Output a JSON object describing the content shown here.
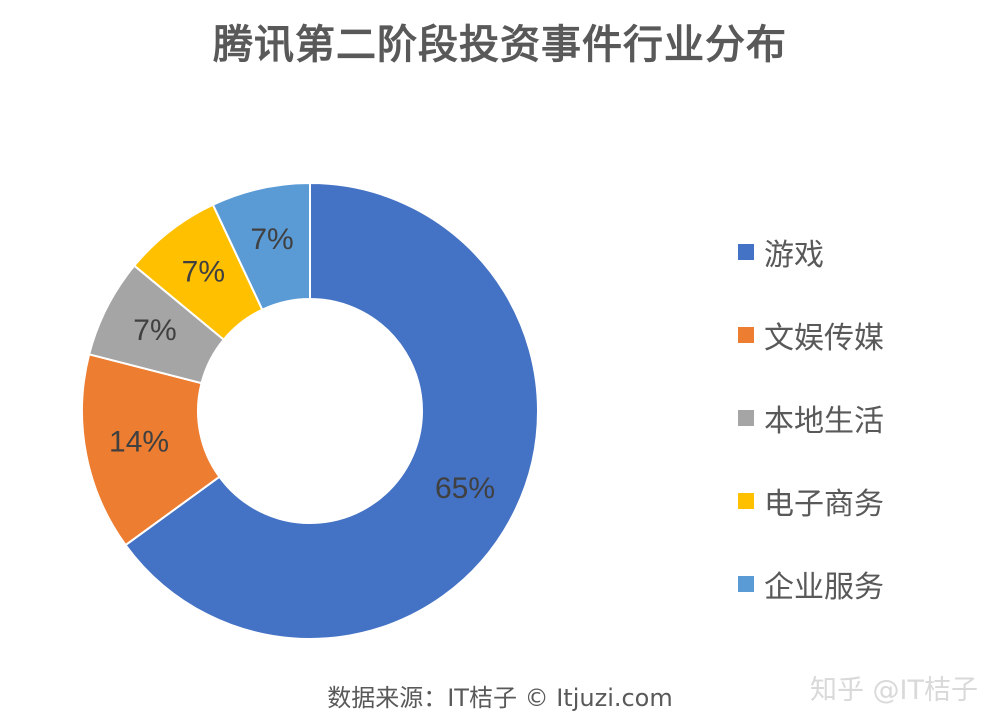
{
  "chart_data": {
    "type": "pie",
    "title": "腾讯第二阶段投资事件行业分布",
    "categories": [
      "游戏",
      "文娱传媒",
      "本地生活",
      "电子商务",
      "企业服务"
    ],
    "values": [
      65,
      14,
      7,
      7,
      7
    ],
    "labels": [
      "65%",
      "14%",
      "7%",
      "7%",
      "7%"
    ],
    "colors": [
      "#4472C4",
      "#ED7D31",
      "#A5A5A5",
      "#FFC000",
      "#5B9BD5"
    ],
    "legend": "right",
    "donut": true
  },
  "footer": {
    "source": "数据来源：IT桔子 © Itjuzi.com",
    "watermark": "知乎 @IT桔子"
  }
}
